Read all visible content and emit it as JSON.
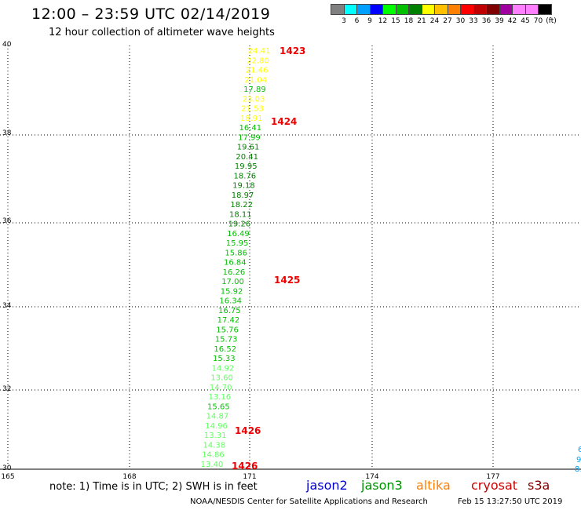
{
  "header": {
    "title": "12:00 – 23:59 UTC 02/14/2019",
    "subtitle": "12 hour collection of altimeter wave heights"
  },
  "scale": {
    "colors": [
      "#808080",
      "#00ffff",
      "#00a0ff",
      "#0000ff",
      "#00ff00",
      "#00c000",
      "#008000",
      "#ffff00",
      "#ffc000",
      "#ff8000",
      "#ff0000",
      "#c00000",
      "#800000",
      "#a000a0",
      "#ff80ff",
      "#ff80ff",
      "#000000"
    ],
    "labels": [
      "3",
      "6",
      "9",
      "12",
      "15",
      "18",
      "21",
      "24",
      "27",
      "30",
      "33",
      "36",
      "39",
      "42",
      "45",
      "70",
      "(ft)"
    ]
  },
  "axes": {
    "y_ticks": [
      "40",
      "38",
      "36",
      "34",
      "32",
      "30"
    ],
    "x_ticks": [
      "165",
      "168",
      "171",
      "174",
      "177"
    ]
  },
  "observations": [
    {
      "v": "24.41",
      "c": "#ffff00"
    },
    {
      "v": "22.80",
      "c": "#ffff00"
    },
    {
      "v": "21.46",
      "c": "#ffff00"
    },
    {
      "v": "21.04",
      "c": "#ffff00"
    },
    {
      "v": "17.89",
      "c": "#00c000"
    },
    {
      "v": "23.03",
      "c": "#ffff00"
    },
    {
      "v": "21.53",
      "c": "#ffff00"
    },
    {
      "v": "18.91",
      "c": "#ffff00"
    },
    {
      "v": "16.41",
      "c": "#00c000"
    },
    {
      "v": "17.99",
      "c": "#00c000"
    },
    {
      "v": "19.61",
      "c": "#008000"
    },
    {
      "v": "20.41",
      "c": "#008000"
    },
    {
      "v": "19.95",
      "c": "#008000"
    },
    {
      "v": "18.76",
      "c": "#008000"
    },
    {
      "v": "19.18",
      "c": "#008000"
    },
    {
      "v": "18.97",
      "c": "#008000"
    },
    {
      "v": "18.22",
      "c": "#008000"
    },
    {
      "v": "18.11",
      "c": "#008000"
    },
    {
      "v": "19.26",
      "c": "#008000"
    },
    {
      "v": "16.49",
      "c": "#00c000"
    },
    {
      "v": "15.95",
      "c": "#00c000"
    },
    {
      "v": "15.86",
      "c": "#00c000"
    },
    {
      "v": "16.84",
      "c": "#00c000"
    },
    {
      "v": "16.26",
      "c": "#00c000"
    },
    {
      "v": "17.00",
      "c": "#00c000"
    },
    {
      "v": "15.92",
      "c": "#00c000"
    },
    {
      "v": "16.34",
      "c": "#00c000"
    },
    {
      "v": "16.75",
      "c": "#00c000"
    },
    {
      "v": "17.42",
      "c": "#00c000"
    },
    {
      "v": "15.76",
      "c": "#00c000"
    },
    {
      "v": "15.73",
      "c": "#00c000"
    },
    {
      "v": "16.52",
      "c": "#00c000"
    },
    {
      "v": "15.33",
      "c": "#00c000"
    },
    {
      "v": "14.92",
      "c": "#60ff60"
    },
    {
      "v": "13.60",
      "c": "#60ff60"
    },
    {
      "v": "14.70",
      "c": "#60ff60"
    },
    {
      "v": "13.16",
      "c": "#60ff60"
    },
    {
      "v": "15.65",
      "c": "#00c000"
    },
    {
      "v": "14.87",
      "c": "#60ff60"
    },
    {
      "v": "14.96",
      "c": "#60ff60"
    },
    {
      "v": "13.31",
      "c": "#60ff60"
    },
    {
      "v": "14.38",
      "c": "#60ff60"
    },
    {
      "v": "14.86",
      "c": "#60ff60"
    },
    {
      "v": "13.40",
      "c": "#60ff60"
    }
  ],
  "time_labels": [
    "1423",
    "1424",
    "1425",
    "1426",
    "1426"
  ],
  "edge_labels": [
    {
      "v": "6",
      "c": "#00a0ff"
    },
    {
      "v": "9",
      "c": "#00a0ff"
    },
    {
      "v": "8.",
      "c": "#00a0ff"
    }
  ],
  "footer": {
    "note": "note: 1) Time is in UTC; 2) SWH is in feet",
    "satellites": [
      {
        "name": "jason2",
        "color": "#0000cc"
      },
      {
        "name": "jason3",
        "color": "#009000"
      },
      {
        "name": "altika",
        "color": "#ff8000"
      },
      {
        "name": "cryosat",
        "color": "#cc0000"
      },
      {
        "name": "s3a",
        "color": "#800000"
      }
    ],
    "credit": "NOAA/NESDIS Center for Satellite Applications and Research",
    "timestamp": "Feb 15 13:27:50 UTC 2019"
  }
}
